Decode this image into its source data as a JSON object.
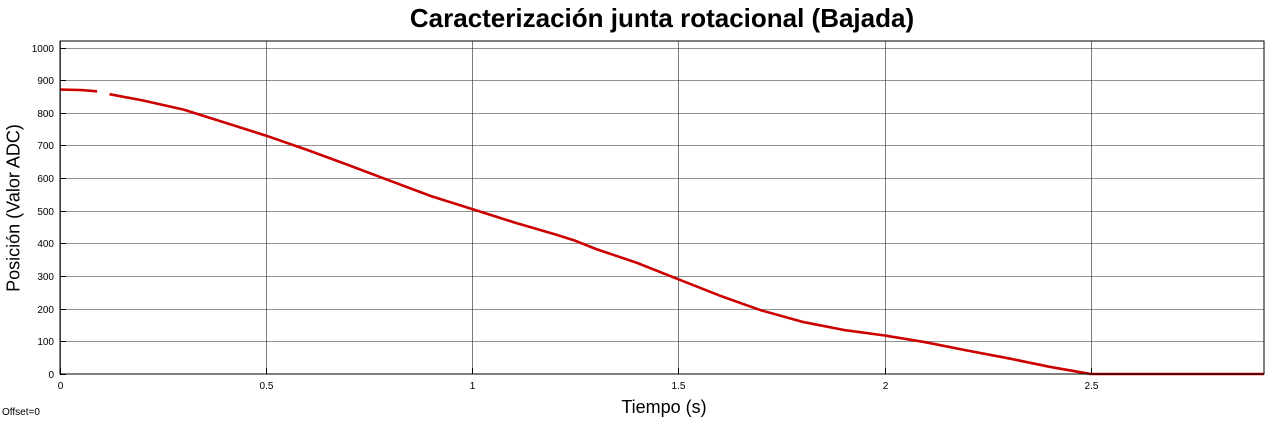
{
  "chart_data": {
    "type": "line",
    "title": "Caracterización junta rotacional (Bajada)",
    "xlabel": "Tiempo (s)",
    "ylabel": "Posición (Valor ADC)",
    "xlim": [
      0,
      2.92
    ],
    "ylim": [
      0,
      1020
    ],
    "xticks": [
      0,
      0.5,
      1,
      1.5,
      2,
      2.5
    ],
    "xtick_labels": [
      "0",
      "0.5",
      "1",
      "1.5",
      "2",
      "2.5"
    ],
    "yticks": [
      0,
      100,
      200,
      300,
      400,
      500,
      600,
      700,
      800,
      900,
      1000
    ],
    "ytick_labels": [
      "0",
      "100",
      "200",
      "300",
      "400",
      "500",
      "600",
      "700",
      "800",
      "900",
      "1000"
    ],
    "grid": true,
    "series": [
      {
        "color": "#cc0000",
        "segments": [
          {
            "x": [
              0,
              0.05,
              0.09
            ],
            "y": [
              871,
              870,
              866
            ]
          },
          {
            "x": [
              0.12,
              0.2,
              0.3,
              0.4,
              0.5,
              0.6,
              0.7,
              0.8,
              0.9,
              1.0,
              1.1,
              1.2,
              1.25,
              1.3,
              1.4,
              1.5,
              1.6,
              1.7,
              1.8,
              1.9,
              2.0,
              2.1,
              2.2,
              2.3,
              2.4,
              2.49,
              2.5,
              2.92
            ],
            "y": [
              857,
              838,
              810,
              770,
              730,
              686,
              640,
              592,
              545,
              505,
              465,
              428,
              408,
              383,
              340,
              290,
              240,
              195,
              160,
              135,
              118,
              97,
              72,
              48,
              22,
              2,
              0,
              0
            ]
          }
        ]
      }
    ],
    "annotations": [
      "Offset=0"
    ]
  }
}
